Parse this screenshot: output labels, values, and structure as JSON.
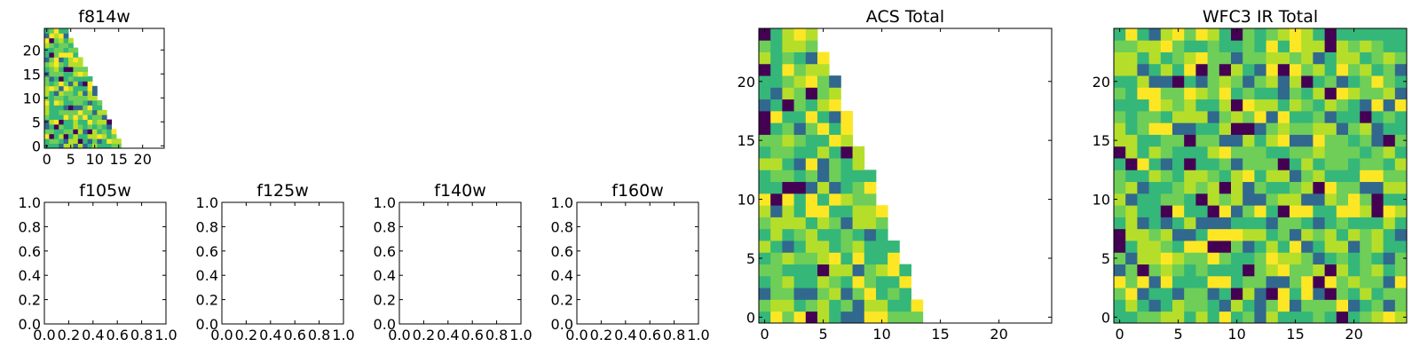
{
  "figure": {
    "type": "heatmap-grid"
  },
  "colormap": [
    "#440154",
    "#31688e",
    "#35b779",
    "#6ece58",
    "#b5de2b",
    "#fde725"
  ],
  "chart_data": [
    {
      "id": "f814w",
      "title": "f814w",
      "type": "heatmap",
      "grid_size": 25,
      "shape": "triangle",
      "row_length_at_0": 16,
      "row_length_at_24": 5,
      "xlim": [
        -0.5,
        24.5
      ],
      "ylim": [
        -0.5,
        24.5
      ],
      "xticks": [
        0,
        5,
        10,
        15,
        20
      ],
      "yticks": [
        0,
        5,
        10,
        15,
        20
      ],
      "seed": 11
    },
    {
      "id": "f105w",
      "title": "f105w",
      "type": "empty",
      "xlim": [
        0,
        1
      ],
      "ylim": [
        0,
        1
      ],
      "xticks": [
        "0.0",
        "0.2",
        "0.4",
        "0.6",
        "0.8",
        "1.0"
      ],
      "yticks": [
        "0.0",
        "0.2",
        "0.4",
        "0.6",
        "0.8",
        "1.0"
      ]
    },
    {
      "id": "f125w",
      "title": "f125w",
      "type": "empty",
      "xlim": [
        0,
        1
      ],
      "ylim": [
        0,
        1
      ],
      "xticks": [
        "0.0",
        "0.2",
        "0.4",
        "0.6",
        "0.8",
        "1.0"
      ],
      "yticks": [
        "0.0",
        "0.2",
        "0.4",
        "0.6",
        "0.8",
        "1.0"
      ]
    },
    {
      "id": "f140w",
      "title": "f140w",
      "type": "empty",
      "xlim": [
        0,
        1
      ],
      "ylim": [
        0,
        1
      ],
      "xticks": [
        "0.0",
        "0.2",
        "0.4",
        "0.6",
        "0.8",
        "1.0"
      ],
      "yticks": [
        "0.0",
        "0.2",
        "0.4",
        "0.6",
        "0.8",
        "1.0"
      ]
    },
    {
      "id": "f160w",
      "title": "f160w",
      "type": "empty",
      "xlim": [
        0,
        1
      ],
      "ylim": [
        0,
        1
      ],
      "xticks": [
        "0.0",
        "0.2",
        "0.4",
        "0.6",
        "0.8",
        "1.0"
      ],
      "yticks": [
        "0.0",
        "0.2",
        "0.4",
        "0.6",
        "0.8",
        "1.0"
      ]
    },
    {
      "id": "acs-total",
      "title": "ACS Total",
      "type": "heatmap",
      "grid_size": 25,
      "shape": "triangle",
      "row_length_at_0": 14,
      "row_length_at_24": 5,
      "xlim": [
        -0.5,
        24.5
      ],
      "ylim": [
        -0.5,
        24.5
      ],
      "xticks": [
        0,
        5,
        10,
        15,
        20
      ],
      "yticks": [
        0,
        5,
        10,
        15,
        20
      ],
      "seed": 7
    },
    {
      "id": "wfc3-ir-total",
      "title": "WFC3 IR Total",
      "type": "heatmap",
      "grid_size": 25,
      "shape": "full",
      "xlim": [
        -0.5,
        24.5
      ],
      "ylim": [
        -0.5,
        24.5
      ],
      "xticks": [
        0,
        5,
        10,
        15,
        20
      ],
      "yticks": [
        0,
        5,
        10,
        15,
        20
      ],
      "seed": 23
    }
  ]
}
